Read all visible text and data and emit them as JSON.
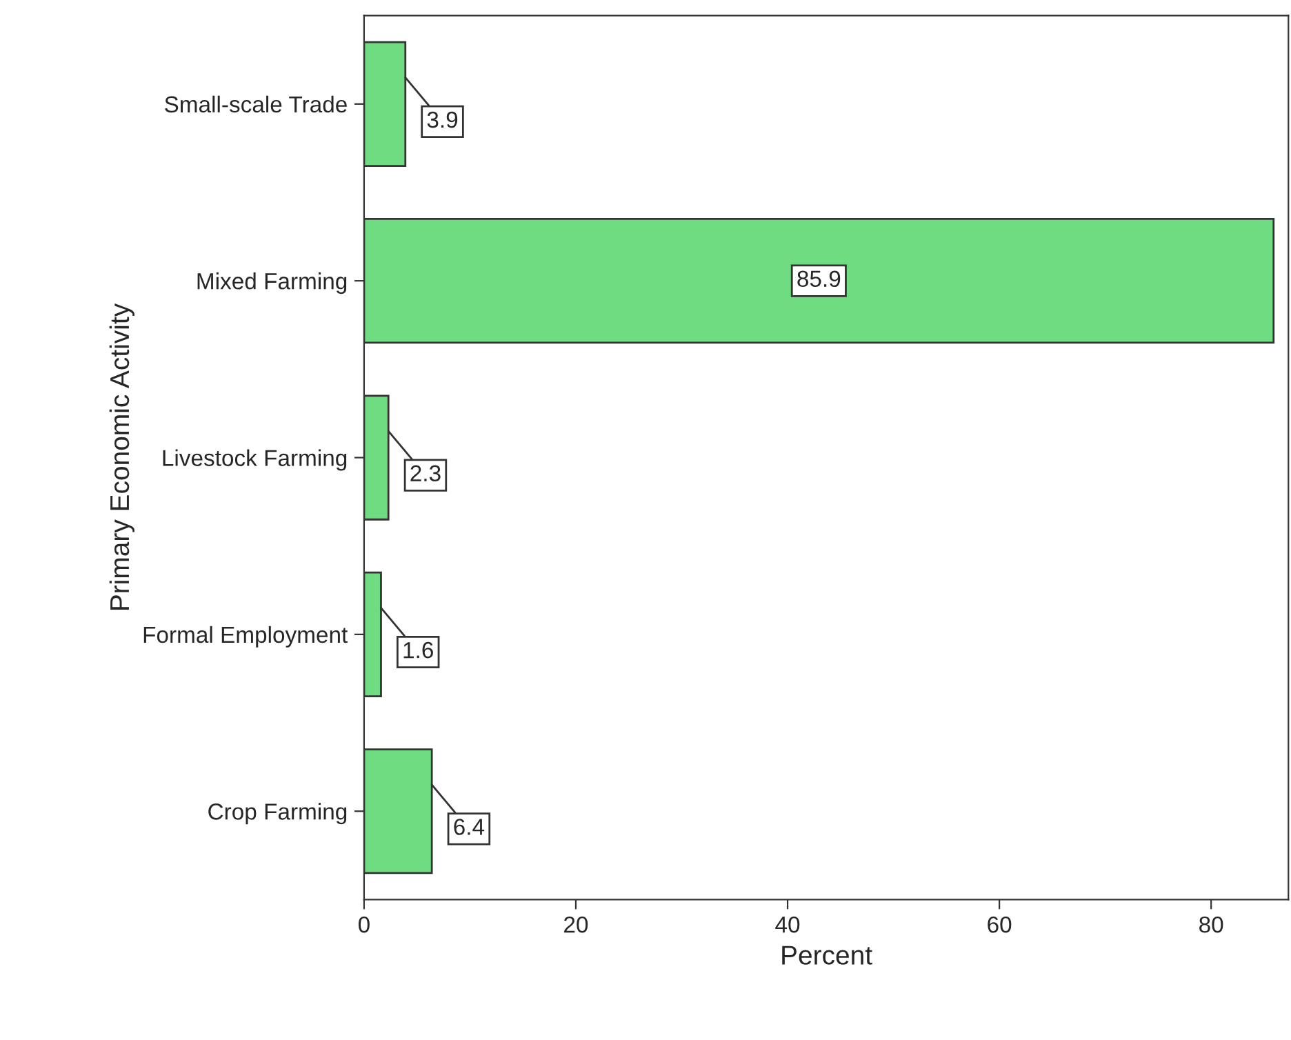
{
  "chart_data": {
    "type": "bar",
    "orientation": "horizontal",
    "xlabel": "Percent",
    "ylabel": "Primary Economic Activity",
    "categories": [
      "Small-scale Trade",
      "Mixed Farming",
      "Livestock Farming",
      "Formal Employment",
      "Crop Farming"
    ],
    "values": [
      3.9,
      85.9,
      2.3,
      1.6,
      6.4
    ],
    "color": "#6fdc82",
    "data_labels": true,
    "grid": false,
    "xlim": [
      0,
      87.3
    ],
    "xticks": [
      0,
      20,
      40,
      60,
      80
    ]
  }
}
